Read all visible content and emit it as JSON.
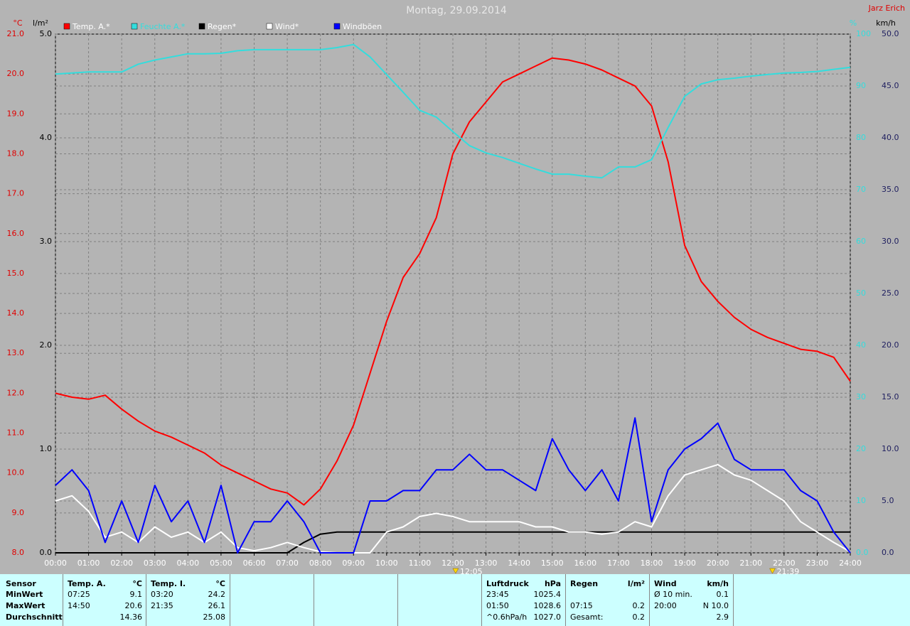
{
  "chart_data": {
    "type": "line",
    "title": "Montag, 29.09.2014",
    "author": "Jarz Erich",
    "y_label": "°C",
    "y4_label": "l/m²",
    "y3_label": "%",
    "y2_label": "km/h",
    "xlim": [
      "00:00",
      "24:00"
    ],
    "xticks": [
      "00:00",
      "01:00",
      "02:00",
      "03:00",
      "04:00",
      "05:00",
      "06:00",
      "07:00",
      "08:00",
      "09:00",
      "10:00",
      "11:00",
      "12:00",
      "13:00",
      "14:00",
      "15:00",
      "16:00",
      "17:00",
      "18:00",
      "19:00",
      "20:00",
      "21:00",
      "22:00",
      "23:00",
      "24:00"
    ],
    "ylim": [
      8,
      21
    ],
    "yticks": [
      {
        "value": 8,
        "label": "8.0"
      },
      {
        "value": 9,
        "label": "9.0"
      },
      {
        "value": 10,
        "label": "10.0"
      },
      {
        "value": 11,
        "label": "11.0"
      },
      {
        "value": 12,
        "label": "12.0"
      },
      {
        "value": 13,
        "label": "13.0"
      },
      {
        "value": 14,
        "label": "14.0"
      },
      {
        "value": 15,
        "label": "15.0"
      },
      {
        "value": 16,
        "label": "16.0"
      },
      {
        "value": 17,
        "label": "17.0"
      },
      {
        "value": 18,
        "label": "18.0"
      },
      {
        "value": 19,
        "label": "19.0"
      },
      {
        "value": 20,
        "label": "20.0"
      },
      {
        "value": 21,
        "label": "21.0"
      }
    ],
    "y2lim": [
      0,
      50
    ],
    "y2ticks": [
      {
        "value": 0,
        "label": "0.0"
      },
      {
        "value": 5,
        "label": "5.0"
      },
      {
        "value": 10,
        "label": "10.0"
      },
      {
        "value": 15,
        "label": "15.0"
      },
      {
        "value": 20,
        "label": "20.0"
      },
      {
        "value": 25,
        "label": "25.0"
      },
      {
        "value": 30,
        "label": "30.0"
      },
      {
        "value": 35,
        "label": "35.0"
      },
      {
        "value": 40,
        "label": "40.0"
      },
      {
        "value": 45,
        "label": "45.0"
      },
      {
        "value": 50,
        "label": "50.0"
      }
    ],
    "y3lim": [
      0,
      100
    ],
    "y3ticks": [
      {
        "value": 0,
        "label": "0.0"
      },
      10,
      20,
      30,
      40,
      50,
      60,
      70,
      80,
      90,
      100
    ],
    "y4lim": [
      0,
      5
    ],
    "y4ticks": [
      {
        "value": 0,
        "label": "0.0"
      },
      {
        "value": 1,
        "label": "1.0"
      },
      {
        "value": 2,
        "label": "2.0"
      },
      {
        "value": 3,
        "label": "3.0"
      },
      {
        "value": 4,
        "label": "4.0"
      },
      {
        "value": 5,
        "label": "5.0"
      }
    ],
    "grid": true,
    "x": [
      "00:00",
      "00:30",
      "01:00",
      "01:30",
      "02:00",
      "02:30",
      "03:00",
      "03:30",
      "04:00",
      "04:30",
      "05:00",
      "05:30",
      "06:00",
      "06:30",
      "07:00",
      "07:30",
      "08:00",
      "08:30",
      "09:00",
      "09:30",
      "10:00",
      "10:30",
      "11:00",
      "11:30",
      "12:00",
      "12:30",
      "13:00",
      "13:30",
      "14:00",
      "14:30",
      "15:00",
      "15:30",
      "16:00",
      "16:30",
      "17:00",
      "17:30",
      "18:00",
      "18:30",
      "19:00",
      "19:30",
      "20:00",
      "20:30",
      "21:00",
      "21:30",
      "22:00",
      "22:30",
      "23:00",
      "23:30",
      "24:00"
    ],
    "series": [
      {
        "name": "Temp. A.*",
        "color": "#ff0000",
        "axis": "y",
        "values": [
          12.0,
          11.9,
          11.85,
          11.95,
          11.6,
          11.3,
          11.05,
          10.9,
          10.7,
          10.5,
          10.2,
          10.0,
          9.8,
          9.6,
          9.5,
          9.2,
          9.6,
          10.3,
          11.2,
          12.5,
          13.8,
          14.9,
          15.5,
          16.4,
          18.0,
          18.8,
          19.3,
          19.8,
          20.0,
          20.2,
          20.4,
          20.35,
          20.25,
          20.1,
          19.9,
          19.7,
          19.2,
          17.8,
          15.7,
          14.8,
          14.3,
          13.9,
          13.6,
          13.4,
          13.25,
          13.1,
          13.05,
          12.9,
          12.3
        ]
      },
      {
        "name": "Feuchte A.*",
        "color": "#33dddd",
        "axis": "y3",
        "values": [
          92.3,
          92.5,
          92.7,
          92.7,
          92.7,
          94.2,
          95.0,
          95.6,
          96.2,
          96.2,
          96.3,
          96.8,
          97.0,
          97.0,
          97.0,
          97.0,
          97.0,
          97.4,
          98.0,
          95.6,
          92.2,
          88.8,
          85.3,
          84.0,
          81.2,
          78.5,
          77.1,
          76.2,
          75.1,
          74.0,
          73.0,
          73.0,
          72.6,
          72.3,
          74.4,
          74.4,
          75.8,
          82.0,
          88.0,
          90.4,
          91.2,
          91.5,
          91.9,
          92.2,
          92.5,
          92.6,
          92.8,
          93.2,
          93.6
        ]
      },
      {
        "name": "Regen*",
        "color": "#000000",
        "axis": "y4",
        "values": [
          0,
          0,
          0,
          0,
          0,
          0,
          0,
          0,
          0,
          0,
          0,
          0,
          0,
          0,
          0,
          0.1,
          0.18,
          0.2,
          0.2,
          0.2,
          0.2,
          0.2,
          0.2,
          0.2,
          0.2,
          0.2,
          0.2,
          0.2,
          0.2,
          0.2,
          0.2,
          0.2,
          0.2,
          0.2,
          0.2,
          0.2,
          0.2,
          0.2,
          0.2,
          0.2,
          0.2,
          0.2,
          0.2,
          0.2,
          0.2,
          0.2,
          0.2,
          0.2,
          0.2
        ]
      },
      {
        "name": "Wind*",
        "color": "#ffffff",
        "axis": "y2",
        "values": [
          5,
          5.5,
          4,
          1.5,
          2,
          1,
          2.5,
          1.5,
          2,
          1,
          2,
          0.5,
          0.2,
          0.5,
          1,
          0.5,
          0.1,
          0,
          0,
          0,
          2,
          2.5,
          3.5,
          3.8,
          3.5,
          3,
          3,
          3,
          3,
          2.5,
          2.5,
          2,
          2,
          1.8,
          2,
          3,
          2.5,
          5.5,
          7.5,
          8,
          8.5,
          7.5,
          7,
          6,
          5,
          3,
          2,
          1,
          0.1
        ]
      },
      {
        "name": "Windböen",
        "color": "#0000ff",
        "axis": "y2",
        "values": [
          6.5,
          8,
          6,
          1,
          5,
          1,
          6.5,
          3,
          5,
          1,
          6.5,
          0,
          3,
          3,
          5,
          3,
          0,
          0,
          0,
          5,
          5,
          6,
          6,
          8,
          8,
          9.5,
          8,
          8,
          7,
          6,
          11,
          8,
          6,
          8,
          5,
          13,
          3,
          8,
          10,
          11,
          12.5,
          9,
          8,
          8,
          8,
          6,
          5,
          2,
          0
        ]
      }
    ],
    "markers": [
      "12:05",
      "21:39"
    ]
  },
  "table": {
    "sensor": {
      "header": "Sensor",
      "rows": [
        "MinWert",
        "MaxWert",
        "Durchschnitt"
      ]
    },
    "blocks": [
      {
        "header": "Temp. A.",
        "unit": "°C",
        "rows": [
          [
            "07:25",
            "9.1"
          ],
          [
            "14:50",
            "20.6"
          ],
          [
            null,
            "14.36"
          ]
        ]
      },
      {
        "header": "Temp. I.",
        "unit": "°C",
        "rows": [
          [
            "03:20",
            "24.2"
          ],
          [
            "21:35",
            "26.1"
          ],
          [
            null,
            "25.08"
          ]
        ]
      },
      {
        "header": "Luftdruck",
        "unit": "hPa",
        "rows": [
          [
            "23:45",
            "1025.4"
          ],
          [
            "01:50",
            "1028.6"
          ],
          [
            "^0.6hPa/h",
            "1027.0"
          ]
        ]
      },
      {
        "header": "Regen",
        "unit": "l/m²",
        "rows": [
          [
            null,
            null
          ],
          [
            "07:15",
            "0.2"
          ],
          [
            "Gesamt:",
            "0.2"
          ]
        ]
      },
      {
        "header": "Wind",
        "unit": "km/h",
        "rows": [
          [
            "Ø 10 min.",
            "0.1"
          ],
          [
            "20:00",
            "N 10.0"
          ],
          [
            null,
            "2.9"
          ]
        ]
      }
    ]
  }
}
